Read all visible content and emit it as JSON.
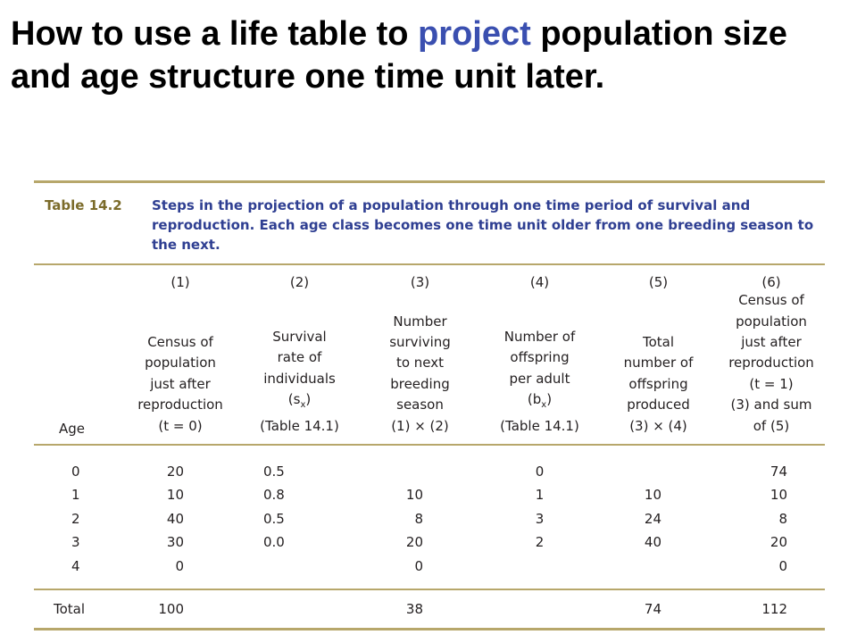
{
  "slide": {
    "title_part1": "How to use a life table to ",
    "title_accent": "project",
    "title_part2": " population size and age structure one time unit later."
  },
  "table": {
    "label": "Table 14.2",
    "caption": "Steps in the projection of a population through one time period of survival and reproduction. Each age class becomes one time unit older from one breeding season to the next.",
    "age_header": "Age",
    "columns": [
      {
        "number": "(1)",
        "header": "Census of\npopulation\njust after\nreproduction\n(t = 0)"
      },
      {
        "number": "(2)",
        "header": "Survival\nrate of\nindividuals\n(s"
      },
      {
        "number": "(3)",
        "header": "Number\nsurviving\nto next\nbreeding\nseason\n(1) × (2)"
      },
      {
        "number": "(4)",
        "header": "Number of\noffspring\nper adult\n(b"
      },
      {
        "number": "(5)",
        "header": "Total\nnumber of\noffspring\nproduced\n(3) × (4)"
      },
      {
        "number": "(6)",
        "header": "Census of\npopulation\njust after\nreproduction\n(t = 1)\n(3) and sum\nof (5)"
      }
    ],
    "sub_x": "x",
    "col2_tail": ")\n(Table 14.1)",
    "col4_tail": ")\n(Table 14.1)",
    "rows": [
      {
        "age": "0",
        "c1": "20",
        "c2": "0.5",
        "c3": "",
        "c4": "0",
        "c5": "",
        "c6": "74"
      },
      {
        "age": "1",
        "c1": "10",
        "c2": "0.8",
        "c3": "10",
        "c4": "1",
        "c5": "10",
        "c6": "10"
      },
      {
        "age": "2",
        "c1": "40",
        "c2": "0.5",
        "c3": "8",
        "c4": "3",
        "c5": "24",
        "c6": "8"
      },
      {
        "age": "3",
        "c1": "30",
        "c2": "0.0",
        "c3": "20",
        "c4": "2",
        "c5": "40",
        "c6": "20"
      },
      {
        "age": "4",
        "c1": "0",
        "c2": "",
        "c3": "0",
        "c4": "",
        "c5": "",
        "c6": "0"
      }
    ],
    "total": {
      "label": "Total",
      "c1": "100",
      "c3": "38",
      "c5": "74",
      "c6": "112"
    }
  }
}
